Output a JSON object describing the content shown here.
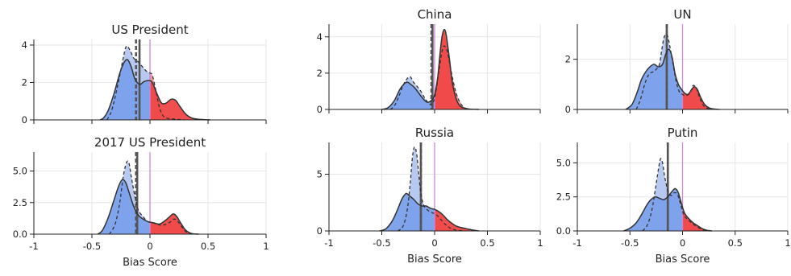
{
  "chart_data": [
    {
      "type": "area",
      "title": "US President",
      "xlabel": "",
      "xlim": [
        -1,
        1
      ],
      "ylim": [
        0,
        4.3
      ],
      "yticks": [
        0,
        2,
        4
      ],
      "xticks": [
        -1,
        -0.5,
        0,
        0.5,
        1
      ],
      "show_xticklabels": false,
      "grid": true,
      "median_solid": -0.09,
      "median_dashed": -0.12,
      "curve_solid": [
        [
          -0.43,
          0
        ],
        [
          -0.4,
          0.1
        ],
        [
          -0.36,
          0.5
        ],
        [
          -0.31,
          1.4
        ],
        [
          -0.26,
          2.5
        ],
        [
          -0.22,
          3.1
        ],
        [
          -0.19,
          3.2
        ],
        [
          -0.16,
          2.8
        ],
        [
          -0.13,
          2.2
        ],
        [
          -0.09,
          1.9
        ],
        [
          -0.05,
          2.05
        ],
        [
          -0.01,
          2.1
        ],
        [
          0.02,
          2.0
        ],
        [
          0.06,
          1.4
        ],
        [
          0.1,
          0.9
        ],
        [
          0.14,
          0.9
        ],
        [
          0.18,
          1.1
        ],
        [
          0.22,
          1.05
        ],
        [
          0.26,
          0.7
        ],
        [
          0.31,
          0.3
        ],
        [
          0.37,
          0.08
        ],
        [
          0.45,
          0.02
        ],
        [
          0.52,
          0
        ]
      ],
      "curve_dashed": [
        [
          -0.37,
          0
        ],
        [
          -0.33,
          0.5
        ],
        [
          -0.29,
          1.5
        ],
        [
          -0.25,
          2.7
        ],
        [
          -0.22,
          3.6
        ],
        [
          -0.2,
          3.95
        ],
        [
          -0.17,
          3.7
        ],
        [
          -0.14,
          3.3
        ],
        [
          -0.1,
          3.1
        ],
        [
          -0.06,
          2.8
        ],
        [
          -0.03,
          2.6
        ],
        [
          0.0,
          2.5
        ],
        [
          0.02,
          2.4
        ],
        [
          0.05,
          1.6
        ],
        [
          0.08,
          0.7
        ],
        [
          0.11,
          0.25
        ],
        [
          0.14,
          0.1
        ],
        [
          0.2,
          0.05
        ],
        [
          0.3,
          0
        ]
      ]
    },
    {
      "type": "area",
      "title": "2017 US President",
      "xlabel": "Bias Score",
      "xlim": [
        -1,
        1
      ],
      "ylim": [
        0,
        6.5
      ],
      "yticks": [
        0,
        2.5,
        5
      ],
      "ytick_labels": [
        "0.0",
        "2.5",
        "5.0"
      ],
      "xticks": [
        -1,
        -0.5,
        0,
        0.5,
        1
      ],
      "xtick_labels": [
        "-1",
        "-0.5",
        "0",
        "0.5",
        "1"
      ],
      "grid": true,
      "median_solid": -0.11,
      "median_dashed": -0.12,
      "curve_solid": [
        [
          -0.45,
          0
        ],
        [
          -0.41,
          0.3
        ],
        [
          -0.36,
          1.3
        ],
        [
          -0.31,
          2.7
        ],
        [
          -0.27,
          3.8
        ],
        [
          -0.24,
          4.3
        ],
        [
          -0.21,
          4.1
        ],
        [
          -0.18,
          3.3
        ],
        [
          -0.14,
          2.2
        ],
        [
          -0.1,
          1.5
        ],
        [
          -0.06,
          1.2
        ],
        [
          -0.02,
          1.0
        ],
        [
          0.03,
          0.9
        ],
        [
          0.08,
          0.8
        ],
        [
          0.12,
          1.0
        ],
        [
          0.16,
          1.3
        ],
        [
          0.2,
          1.6
        ],
        [
          0.23,
          1.4
        ],
        [
          0.27,
          0.8
        ],
        [
          0.31,
          0.3
        ],
        [
          0.36,
          0.05
        ],
        [
          0.42,
          0
        ]
      ],
      "curve_dashed": [
        [
          -0.35,
          0
        ],
        [
          -0.3,
          0.8
        ],
        [
          -0.26,
          2.5
        ],
        [
          -0.23,
          4.6
        ],
        [
          -0.2,
          5.7
        ],
        [
          -0.18,
          5.6
        ],
        [
          -0.16,
          4.5
        ],
        [
          -0.13,
          3.0
        ],
        [
          -0.1,
          1.9
        ],
        [
          -0.06,
          1.4
        ],
        [
          -0.02,
          1.0
        ],
        [
          0.02,
          0.9
        ],
        [
          0.06,
          0.8
        ],
        [
          0.1,
          0.7
        ],
        [
          0.14,
          0.8
        ],
        [
          0.18,
          1.0
        ],
        [
          0.21,
          1.2
        ],
        [
          0.24,
          1.0
        ],
        [
          0.28,
          0.5
        ],
        [
          0.32,
          0.1
        ],
        [
          0.36,
          0
        ]
      ]
    },
    {
      "type": "area",
      "title": "China",
      "xlabel": "",
      "xlim": [
        -1,
        1
      ],
      "ylim": [
        0,
        4.7
      ],
      "yticks": [
        0,
        2,
        4
      ],
      "xticks": [
        -1,
        -0.5,
        0,
        0.5,
        1
      ],
      "show_xticklabels": false,
      "grid": true,
      "median_solid": -0.02,
      "median_dashed": -0.03,
      "curve_solid": [
        [
          -0.5,
          0
        ],
        [
          -0.44,
          0.1
        ],
        [
          -0.38,
          0.5
        ],
        [
          -0.33,
          1.1
        ],
        [
          -0.29,
          1.4
        ],
        [
          -0.26,
          1.5
        ],
        [
          -0.23,
          1.4
        ],
        [
          -0.19,
          1.2
        ],
        [
          -0.15,
          0.9
        ],
        [
          -0.11,
          0.6
        ],
        [
          -0.07,
          0.4
        ],
        [
          -0.03,
          0.5
        ],
        [
          0.0,
          0.8
        ],
        [
          0.03,
          1.8
        ],
        [
          0.05,
          3.0
        ],
        [
          0.07,
          4.0
        ],
        [
          0.09,
          4.4
        ],
        [
          0.11,
          4.1
        ],
        [
          0.14,
          2.8
        ],
        [
          0.17,
          1.4
        ],
        [
          0.21,
          0.5
        ],
        [
          0.25,
          0.15
        ],
        [
          0.32,
          0.03
        ],
        [
          0.42,
          0
        ]
      ],
      "curve_dashed": [
        [
          -0.42,
          0
        ],
        [
          -0.38,
          0.2
        ],
        [
          -0.34,
          0.7
        ],
        [
          -0.3,
          1.3
        ],
        [
          -0.26,
          1.7
        ],
        [
          -0.23,
          1.8
        ],
        [
          -0.2,
          1.5
        ],
        [
          -0.17,
          1.3
        ],
        [
          -0.13,
          1.0
        ],
        [
          -0.09,
          0.6
        ],
        [
          -0.05,
          0.3
        ],
        [
          -0.02,
          0.3
        ],
        [
          0.01,
          0.9
        ],
        [
          0.04,
          2.1
        ],
        [
          0.07,
          3.2
        ],
        [
          0.09,
          3.5
        ],
        [
          0.12,
          3.2
        ],
        [
          0.15,
          2.3
        ],
        [
          0.19,
          1.2
        ],
        [
          0.23,
          0.5
        ],
        [
          0.28,
          0.1
        ],
        [
          0.35,
          0
        ]
      ]
    },
    {
      "type": "area",
      "title": "Russia",
      "xlabel": "Bias Score",
      "xlim": [
        -1,
        1
      ],
      "ylim": [
        0,
        7.8
      ],
      "yticks": [
        0,
        5
      ],
      "xticks": [
        -1,
        -0.5,
        0,
        0.5,
        1
      ],
      "xtick_labels": [
        "-1",
        "-0.5",
        "0",
        "0.5",
        "1"
      ],
      "grid": true,
      "median_solid": -0.13,
      "median_dashed": -0.13,
      "curve_solid": [
        [
          -0.52,
          0
        ],
        [
          -0.46,
          0.2
        ],
        [
          -0.4,
          0.9
        ],
        [
          -0.35,
          1.9
        ],
        [
          -0.31,
          2.8
        ],
        [
          -0.27,
          3.3
        ],
        [
          -0.24,
          3.1
        ],
        [
          -0.2,
          2.8
        ],
        [
          -0.16,
          2.4
        ],
        [
          -0.12,
          2.2
        ],
        [
          -0.08,
          2.2
        ],
        [
          -0.04,
          2.0
        ],
        [
          0.0,
          1.9
        ],
        [
          0.04,
          1.7
        ],
        [
          0.08,
          1.4
        ],
        [
          0.12,
          1.0
        ],
        [
          0.16,
          0.7
        ],
        [
          0.2,
          0.45
        ],
        [
          0.25,
          0.3
        ],
        [
          0.3,
          0.2
        ],
        [
          0.35,
          0.1
        ],
        [
          0.42,
          0
        ]
      ],
      "curve_dashed": [
        [
          -0.35,
          0
        ],
        [
          -0.3,
          0.4
        ],
        [
          -0.26,
          1.8
        ],
        [
          -0.23,
          4.3
        ],
        [
          -0.21,
          6.5
        ],
        [
          -0.19,
          7.4
        ],
        [
          -0.17,
          6.8
        ],
        [
          -0.15,
          5.0
        ],
        [
          -0.13,
          3.3
        ],
        [
          -0.1,
          2.2
        ],
        [
          -0.06,
          1.8
        ],
        [
          -0.02,
          1.6
        ],
        [
          0.02,
          1.4
        ],
        [
          0.06,
          1.0
        ],
        [
          0.1,
          0.6
        ],
        [
          0.14,
          0.3
        ],
        [
          0.2,
          0.08
        ],
        [
          0.28,
          0
        ]
      ]
    },
    {
      "type": "area",
      "title": "UN",
      "xlabel": "",
      "xlim": [
        -1,
        1
      ],
      "ylim": [
        0,
        3.4
      ],
      "yticks": [
        0,
        2
      ],
      "xticks": [
        -1,
        -0.5,
        0,
        0.5,
        1
      ],
      "show_xticklabels": false,
      "grid": true,
      "median_solid": -0.15,
      "median_dashed": -0.15,
      "curve_solid": [
        [
          -0.54,
          0
        ],
        [
          -0.48,
          0.2
        ],
        [
          -0.43,
          0.7
        ],
        [
          -0.39,
          1.2
        ],
        [
          -0.35,
          1.5
        ],
        [
          -0.31,
          1.7
        ],
        [
          -0.27,
          1.8
        ],
        [
          -0.23,
          1.7
        ],
        [
          -0.19,
          1.8
        ],
        [
          -0.16,
          2.2
        ],
        [
          -0.13,
          2.4
        ],
        [
          -0.1,
          2.1
        ],
        [
          -0.07,
          1.4
        ],
        [
          -0.04,
          1.0
        ],
        [
          -0.01,
          0.8
        ],
        [
          0.02,
          0.65
        ],
        [
          0.05,
          0.6
        ],
        [
          0.08,
          0.75
        ],
        [
          0.11,
          0.9
        ],
        [
          0.14,
          0.8
        ],
        [
          0.17,
          0.5
        ],
        [
          0.21,
          0.2
        ],
        [
          0.26,
          0.05
        ],
        [
          0.34,
          0
        ]
      ],
      "curve_dashed": [
        [
          -0.44,
          0
        ],
        [
          -0.4,
          0.4
        ],
        [
          -0.36,
          1.0
        ],
        [
          -0.32,
          1.4
        ],
        [
          -0.28,
          1.5
        ],
        [
          -0.25,
          1.6
        ],
        [
          -0.22,
          1.8
        ],
        [
          -0.2,
          2.3
        ],
        [
          -0.18,
          2.8
        ],
        [
          -0.16,
          3.0
        ],
        [
          -0.14,
          2.9
        ],
        [
          -0.12,
          2.5
        ],
        [
          -0.09,
          1.8
        ],
        [
          -0.06,
          1.1
        ],
        [
          -0.03,
          0.7
        ],
        [
          0.0,
          0.6
        ],
        [
          0.03,
          0.55
        ],
        [
          0.07,
          0.65
        ],
        [
          0.1,
          0.95
        ],
        [
          0.13,
          0.85
        ],
        [
          0.16,
          0.5
        ],
        [
          0.2,
          0.15
        ],
        [
          0.25,
          0.03
        ],
        [
          0.36,
          0
        ]
      ]
    },
    {
      "type": "area",
      "title": "Putin",
      "xlabel": "Bias Score",
      "xlim": [
        -1,
        1
      ],
      "ylim": [
        0,
        6.5
      ],
      "yticks": [
        0,
        2.5,
        5
      ],
      "ytick_labels": [
        "0.0",
        "2.5",
        "5.0"
      ],
      "xticks": [
        -1,
        -0.5,
        0,
        0.5,
        1
      ],
      "xtick_labels": [
        "-1",
        "-0.5",
        "0",
        "0.5",
        "1"
      ],
      "grid": true,
      "median_solid": -0.14,
      "median_dashed": -0.14,
      "curve_solid": [
        [
          -0.56,
          0
        ],
        [
          -0.5,
          0.2
        ],
        [
          -0.44,
          0.6
        ],
        [
          -0.39,
          1.2
        ],
        [
          -0.34,
          1.9
        ],
        [
          -0.3,
          2.3
        ],
        [
          -0.26,
          2.5
        ],
        [
          -0.22,
          2.4
        ],
        [
          -0.18,
          2.3
        ],
        [
          -0.14,
          2.5
        ],
        [
          -0.1,
          2.9
        ],
        [
          -0.07,
          3.1
        ],
        [
          -0.04,
          2.8
        ],
        [
          -0.01,
          2.0
        ],
        [
          0.02,
          1.3
        ],
        [
          0.06,
          0.9
        ],
        [
          0.1,
          0.6
        ],
        [
          0.14,
          0.4
        ],
        [
          0.18,
          0.2
        ],
        [
          0.23,
          0.05
        ],
        [
          0.28,
          0
        ]
      ],
      "curve_dashed": [
        [
          -0.38,
          0
        ],
        [
          -0.33,
          0.5
        ],
        [
          -0.29,
          1.6
        ],
        [
          -0.26,
          3.0
        ],
        [
          -0.23,
          4.5
        ],
        [
          -0.21,
          5.3
        ],
        [
          -0.19,
          5.0
        ],
        [
          -0.17,
          4.0
        ],
        [
          -0.14,
          3.0
        ],
        [
          -0.11,
          2.6
        ],
        [
          -0.08,
          2.8
        ],
        [
          -0.05,
          2.7
        ],
        [
          -0.02,
          2.0
        ],
        [
          0.01,
          1.2
        ],
        [
          0.04,
          0.9
        ],
        [
          0.07,
          0.7
        ],
        [
          0.1,
          0.5
        ],
        [
          0.14,
          0.3
        ],
        [
          0.18,
          0.12
        ],
        [
          0.22,
          0.03
        ],
        [
          0.26,
          0
        ]
      ]
    }
  ],
  "colors": {
    "negative_fill": "#7aa0ea",
    "negative_fill_light": "#b7c9f0",
    "positive_fill": "#f04646",
    "positive_fill_light": "#f59a9a",
    "curve": "#333333",
    "median_line": "#555555",
    "zero_line": "#cc88dd",
    "grid": "#e6e6e6"
  }
}
